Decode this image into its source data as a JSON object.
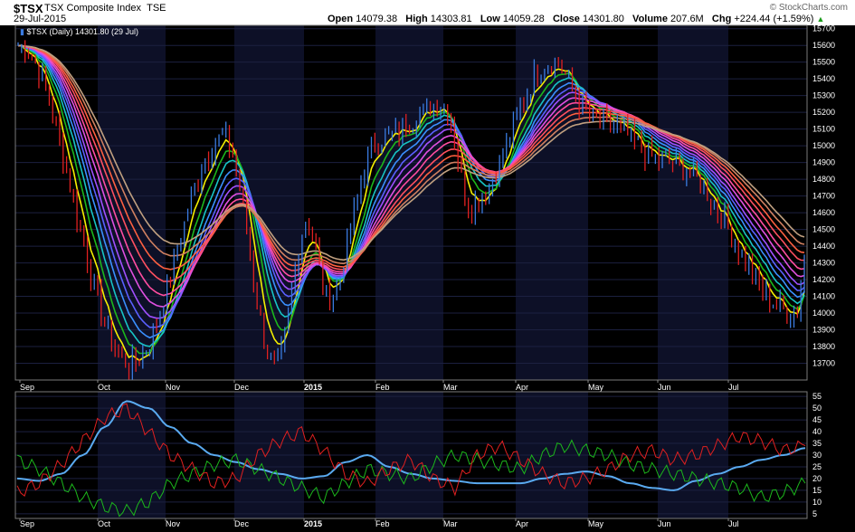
{
  "header": {
    "symbol": "$TSX",
    "name": "TSX Composite Index",
    "exchange": "TSE",
    "date": "29-Jul-2015",
    "open_label": "Open",
    "open": "14079.38",
    "high_label": "High",
    "high": "14303.81",
    "low_label": "Low",
    "low": "14059.28",
    "close_label": "Close",
    "close": "14301.80",
    "volume_label": "Volume",
    "volume": "207.6M",
    "chg_label": "Chg",
    "chg": "+224.44 (+1.59%)",
    "brand": "© StockCharts.com"
  },
  "colors": {
    "background": "#000000",
    "band": "#0d1027",
    "up_bar": "#3a7be0",
    "down_bar": "#e02020",
    "ema": [
      "#f5f000",
      "#1cb71c",
      "#17c4c4",
      "#3a90ff",
      "#5a60ff",
      "#a050ff",
      "#e050e0",
      "#ff4da0",
      "#ff5060",
      "#ff6040",
      "#d08060",
      "#c0a080"
    ],
    "adx": "#5aaaf0",
    "plus_di": "#1cb71c",
    "minus_di": "#e02020"
  },
  "chart_data": [
    {
      "type": "ohlc",
      "legend": "$TSX (Daily) 14301.80 (29 Jul)",
      "ylim": [
        13600,
        15720
      ],
      "y_ticks": [
        13700,
        13800,
        13900,
        14000,
        14100,
        14200,
        14300,
        14400,
        14500,
        14600,
        14700,
        14800,
        14900,
        15000,
        15100,
        15200,
        15300,
        15400,
        15500,
        15600,
        15700
      ],
      "months": [
        "Sep",
        "Oct",
        "Nov",
        "Dec",
        "2015",
        "Feb",
        "Mar",
        "Apr",
        "May",
        "Jun",
        "Jul"
      ],
      "key_points": [
        {
          "date": "Sep 2014",
          "close": 15600
        },
        {
          "date": "Oct 15 2014",
          "close": 13700
        },
        {
          "date": "Nov 28 2014",
          "close": 15050
        },
        {
          "date": "Dec 16 2014",
          "close": 13690
        },
        {
          "date": "Jan 5 2015",
          "close": 14550
        },
        {
          "date": "Jan 16 2015",
          "close": 14100
        },
        {
          "date": "Feb 2015",
          "close": 15050
        },
        {
          "date": "Mar 2 2015",
          "close": 15250
        },
        {
          "date": "Mar 11 2015",
          "close": 14650
        },
        {
          "date": "Apr 15 2015",
          "close": 15500
        },
        {
          "date": "May 2015",
          "close": 15150
        },
        {
          "date": "Jun 2015",
          "close": 14900
        },
        {
          "date": "Jul 28 2015",
          "close": 14000
        },
        {
          "date": "Jul 29 2015",
          "close": 14301.8
        }
      ]
    },
    {
      "type": "line",
      "name": "ADX / DI",
      "ylim": [
        3,
        57
      ],
      "y_ticks": [
        5,
        10,
        15,
        20,
        25,
        30,
        35,
        40,
        45,
        50,
        55
      ],
      "months": [
        "Sep",
        "Oct",
        "Nov",
        "Dec",
        "2015",
        "Feb",
        "Mar",
        "Apr",
        "May",
        "Jun",
        "Jul"
      ],
      "series": [
        {
          "key": "adx",
          "values": [
            20,
            19,
            22,
            30,
            42,
            53,
            50,
            42,
            35,
            30,
            27,
            24,
            22,
            20,
            21,
            27,
            30,
            25,
            22,
            20,
            19,
            18,
            18,
            18,
            20,
            22,
            23,
            21,
            18,
            16,
            15,
            19,
            22,
            25,
            28,
            30,
            33
          ]
        },
        {
          "key": "plus_di",
          "values": [
            28,
            24,
            18,
            12,
            8,
            6,
            10,
            18,
            22,
            26,
            28,
            24,
            20,
            16,
            12,
            18,
            24,
            22,
            20,
            26,
            30,
            28,
            26,
            24,
            30,
            34,
            32,
            30,
            26,
            24,
            22,
            20,
            18,
            16,
            12,
            14,
            18
          ]
        },
        {
          "key": "minus_di",
          "values": [
            14,
            18,
            26,
            36,
            46,
            50,
            40,
            30,
            24,
            18,
            20,
            30,
            36,
            40,
            32,
            22,
            18,
            24,
            28,
            20,
            16,
            30,
            34,
            28,
            22,
            18,
            20,
            24,
            30,
            32,
            28,
            30,
            34,
            38,
            36,
            32,
            34
          ]
        }
      ]
    }
  ]
}
